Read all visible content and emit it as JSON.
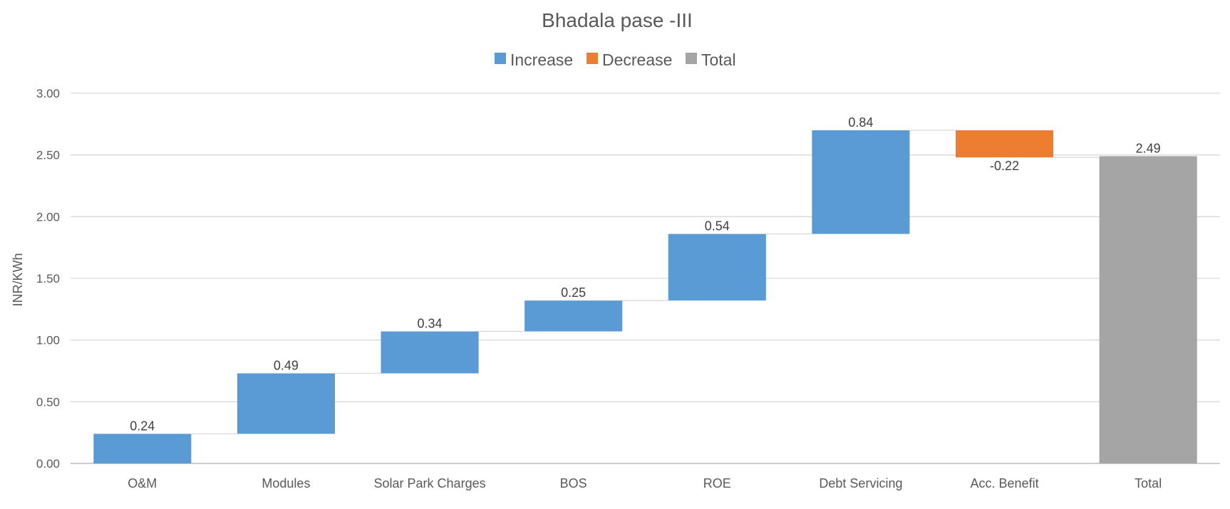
{
  "chart_data": {
    "type": "bar",
    "subtype": "waterfall",
    "title": "Bhadala pase -III",
    "ylabel": "INR/KWh",
    "xlabel": "",
    "ylim": [
      0,
      3.0
    ],
    "yticks": [
      "0.00",
      "0.50",
      "1.00",
      "1.50",
      "2.00",
      "2.50",
      "3.00"
    ],
    "grid": true,
    "legend_position": "top",
    "legend": [
      {
        "name": "Increase",
        "color": "#5B9BD5"
      },
      {
        "name": "Decrease",
        "color": "#ED7D31"
      },
      {
        "name": "Total",
        "color": "#A5A5A5"
      }
    ],
    "categories": [
      "O&M",
      "Modules",
      "Solar Park Charges",
      "BOS",
      "ROE",
      "Debt Servicing",
      "Acc. Benefit",
      "Total"
    ],
    "values": [
      0.24,
      0.49,
      0.34,
      0.25,
      0.54,
      0.84,
      -0.22,
      2.49
    ],
    "labels": [
      "0.24",
      "0.49",
      "0.34",
      "0.25",
      "0.54",
      "0.84",
      "-0.22",
      "2.49"
    ],
    "kinds": [
      "increase",
      "increase",
      "increase",
      "increase",
      "increase",
      "increase",
      "decrease",
      "total"
    ]
  }
}
